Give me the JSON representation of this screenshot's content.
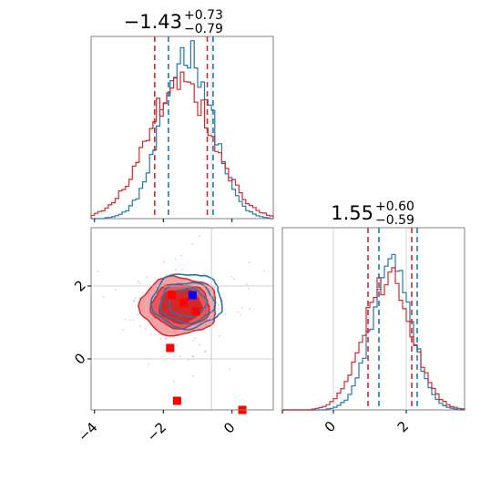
{
  "chart_data": [
    {
      "type": "histogram",
      "panel": "top-left",
      "title_main": "−1.43",
      "title_sup": "+0.73",
      "title_sub": "−0.79",
      "xlim": [
        -4.1,
        1.2
      ],
      "bin_width": 0.1,
      "series": [
        {
          "color": "#1f77b4",
          "center": -1.3,
          "sigma": 0.72,
          "peak": 0.92,
          "quantiles": [
            -1.85,
            -0.55
          ]
        },
        {
          "color": "#d62728",
          "center": -1.5,
          "sigma": 0.95,
          "peak": 0.75,
          "quantiles": [
            -2.25,
            -0.72
          ]
        }
      ]
    },
    {
      "type": "scatter-contour",
      "panel": "bottom-left",
      "xlim": [
        -4.1,
        1.2
      ],
      "ylim": [
        -1.4,
        3.6
      ],
      "xticks": [
        -4,
        -2,
        0
      ],
      "xtick_labels": [
        "−4",
        "−2",
        "0"
      ],
      "yticks": [
        0,
        2
      ],
      "ytick_labels": [
        "0",
        "2"
      ],
      "gridlines": {
        "x": -0.6,
        "y": [
          0,
          2
        ]
      },
      "red_points": [
        [
          -1.75,
          1.75
        ],
        [
          -1.4,
          1.55
        ],
        [
          -1.05,
          1.3
        ],
        [
          -1.8,
          0.3
        ],
        [
          -1.6,
          -1.15
        ],
        [
          0.3,
          -1.4
        ]
      ],
      "blue_points": [
        [
          -1.15,
          1.75
        ]
      ],
      "contours_red": [
        {
          "cx": -1.55,
          "cy": 1.45,
          "rx": 1.12,
          "ry": 0.8,
          "fill": "#f4a3a5"
        },
        {
          "cx": -1.5,
          "cy": 1.45,
          "rx": 0.85,
          "ry": 0.6,
          "fill": "#e8585a"
        },
        {
          "cx": -1.5,
          "cy": 1.45,
          "rx": 0.62,
          "ry": 0.46,
          "fill": "#d62728"
        }
      ],
      "contours_blue": [
        {
          "cx": -1.3,
          "cy": 1.6,
          "rx": 1.02,
          "ry": 0.75
        },
        {
          "cx": -1.3,
          "cy": 1.55,
          "rx": 0.78,
          "ry": 0.55
        },
        {
          "cx": -1.3,
          "cy": 1.55,
          "rx": 0.55,
          "ry": 0.38
        }
      ]
    },
    {
      "type": "histogram",
      "panel": "bottom-right",
      "title_main": "1.55",
      "title_sup": "+0.60",
      "title_sub": "−0.59",
      "xlim": [
        -1.4,
        3.6
      ],
      "bin_width": 0.1,
      "xticks": [
        0,
        2
      ],
      "xtick_labels": [
        "0",
        "2"
      ],
      "gridlines": [
        0,
        2
      ],
      "series": [
        {
          "color": "#1f77b4",
          "center": 1.6,
          "sigma": 0.55,
          "peak": 0.78,
          "quantiles": [
            1.25,
            2.3
          ]
        },
        {
          "color": "#d62728",
          "center": 1.5,
          "sigma": 0.65,
          "peak": 0.73,
          "quantiles": [
            0.95,
            2.15
          ]
        }
      ]
    }
  ]
}
